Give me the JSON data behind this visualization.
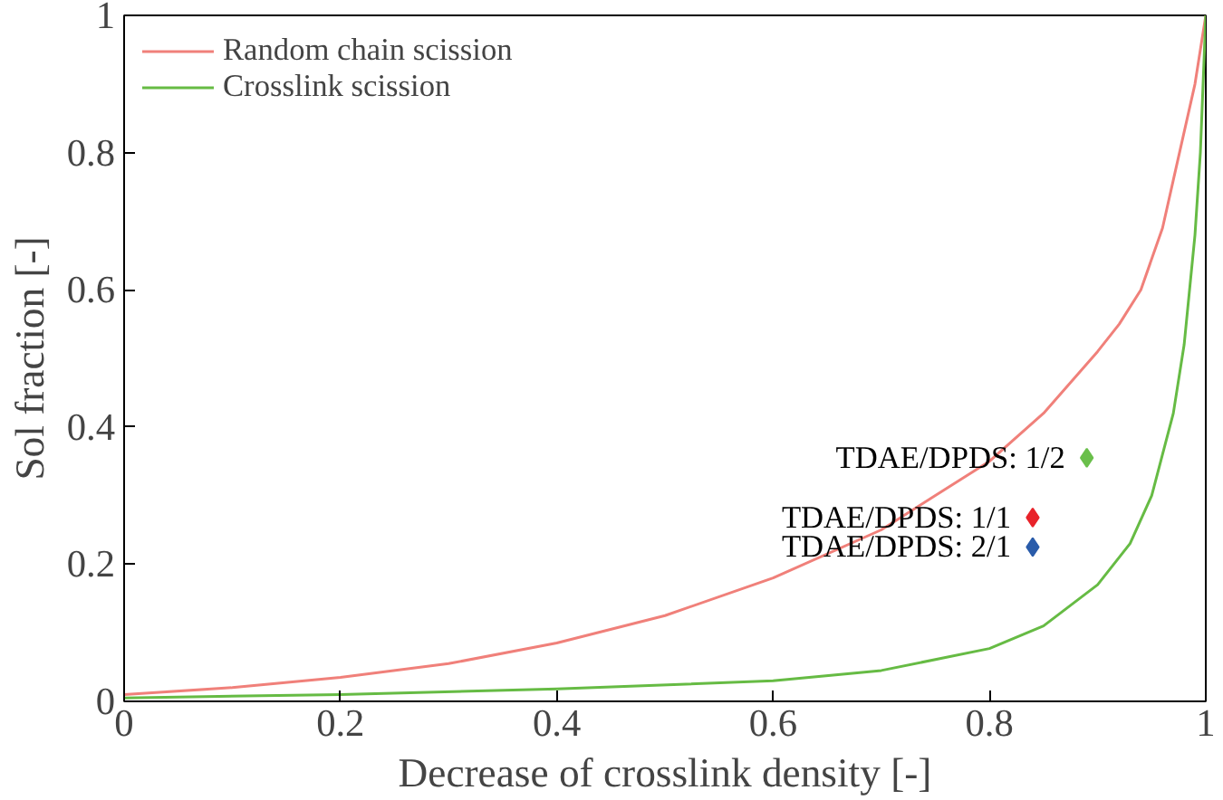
{
  "chart_data": {
    "type": "line",
    "xlabel": "Decrease of crosslink density [-]",
    "ylabel": "Sol fraction [-]",
    "xlim": [
      0,
      1
    ],
    "ylim": [
      0,
      1
    ],
    "xticks": [
      0,
      0.2,
      0.4,
      0.6,
      0.8,
      1
    ],
    "yticks": [
      0,
      0.2,
      0.4,
      0.6,
      0.8,
      1
    ],
    "grid": false,
    "legend": "top left",
    "marker": "none",
    "line_style": "solid",
    "series": [
      {
        "name": "Random chain scission",
        "color": "#f0807a",
        "x": [
          0,
          0.1,
          0.2,
          0.3,
          0.4,
          0.5,
          0.6,
          0.7,
          0.75,
          0.8,
          0.85,
          0.9,
          0.92,
          0.94,
          0.96,
          0.97,
          0.98,
          0.99,
          1
        ],
        "values": [
          0.01,
          0.02,
          0.035,
          0.055,
          0.085,
          0.125,
          0.18,
          0.25,
          0.3,
          0.35,
          0.42,
          0.51,
          0.55,
          0.6,
          0.69,
          0.76,
          0.83,
          0.9,
          1
        ]
      },
      {
        "name": "Crosslink scission",
        "color": "#66bb44",
        "x": [
          0,
          0.2,
          0.4,
          0.6,
          0.7,
          0.8,
          0.85,
          0.9,
          0.93,
          0.95,
          0.97,
          0.98,
          0.99,
          0.995,
          1
        ],
        "values": [
          0.005,
          0.01,
          0.018,
          0.03,
          0.045,
          0.077,
          0.11,
          0.17,
          0.23,
          0.3,
          0.42,
          0.52,
          0.68,
          0.8,
          1
        ]
      },
      {
        "type": "scatter",
        "marker": "diamond",
        "name": "TDAE/DPDS: 1/2",
        "color": "#6abf4b",
        "x": [
          0.89
        ],
        "values": [
          0.355
        ]
      },
      {
        "type": "scatter",
        "marker": "diamond",
        "name": "TDAE/DPDS: 1/1",
        "color": "#e8232a",
        "x": [
          0.84
        ],
        "values": [
          0.268
        ]
      },
      {
        "type": "scatter",
        "marker": "diamond",
        "name": "TDAE/DPDS: 2/1",
        "color": "#2a5caa",
        "x": [
          0.84
        ],
        "values": [
          0.225
        ]
      }
    ]
  }
}
